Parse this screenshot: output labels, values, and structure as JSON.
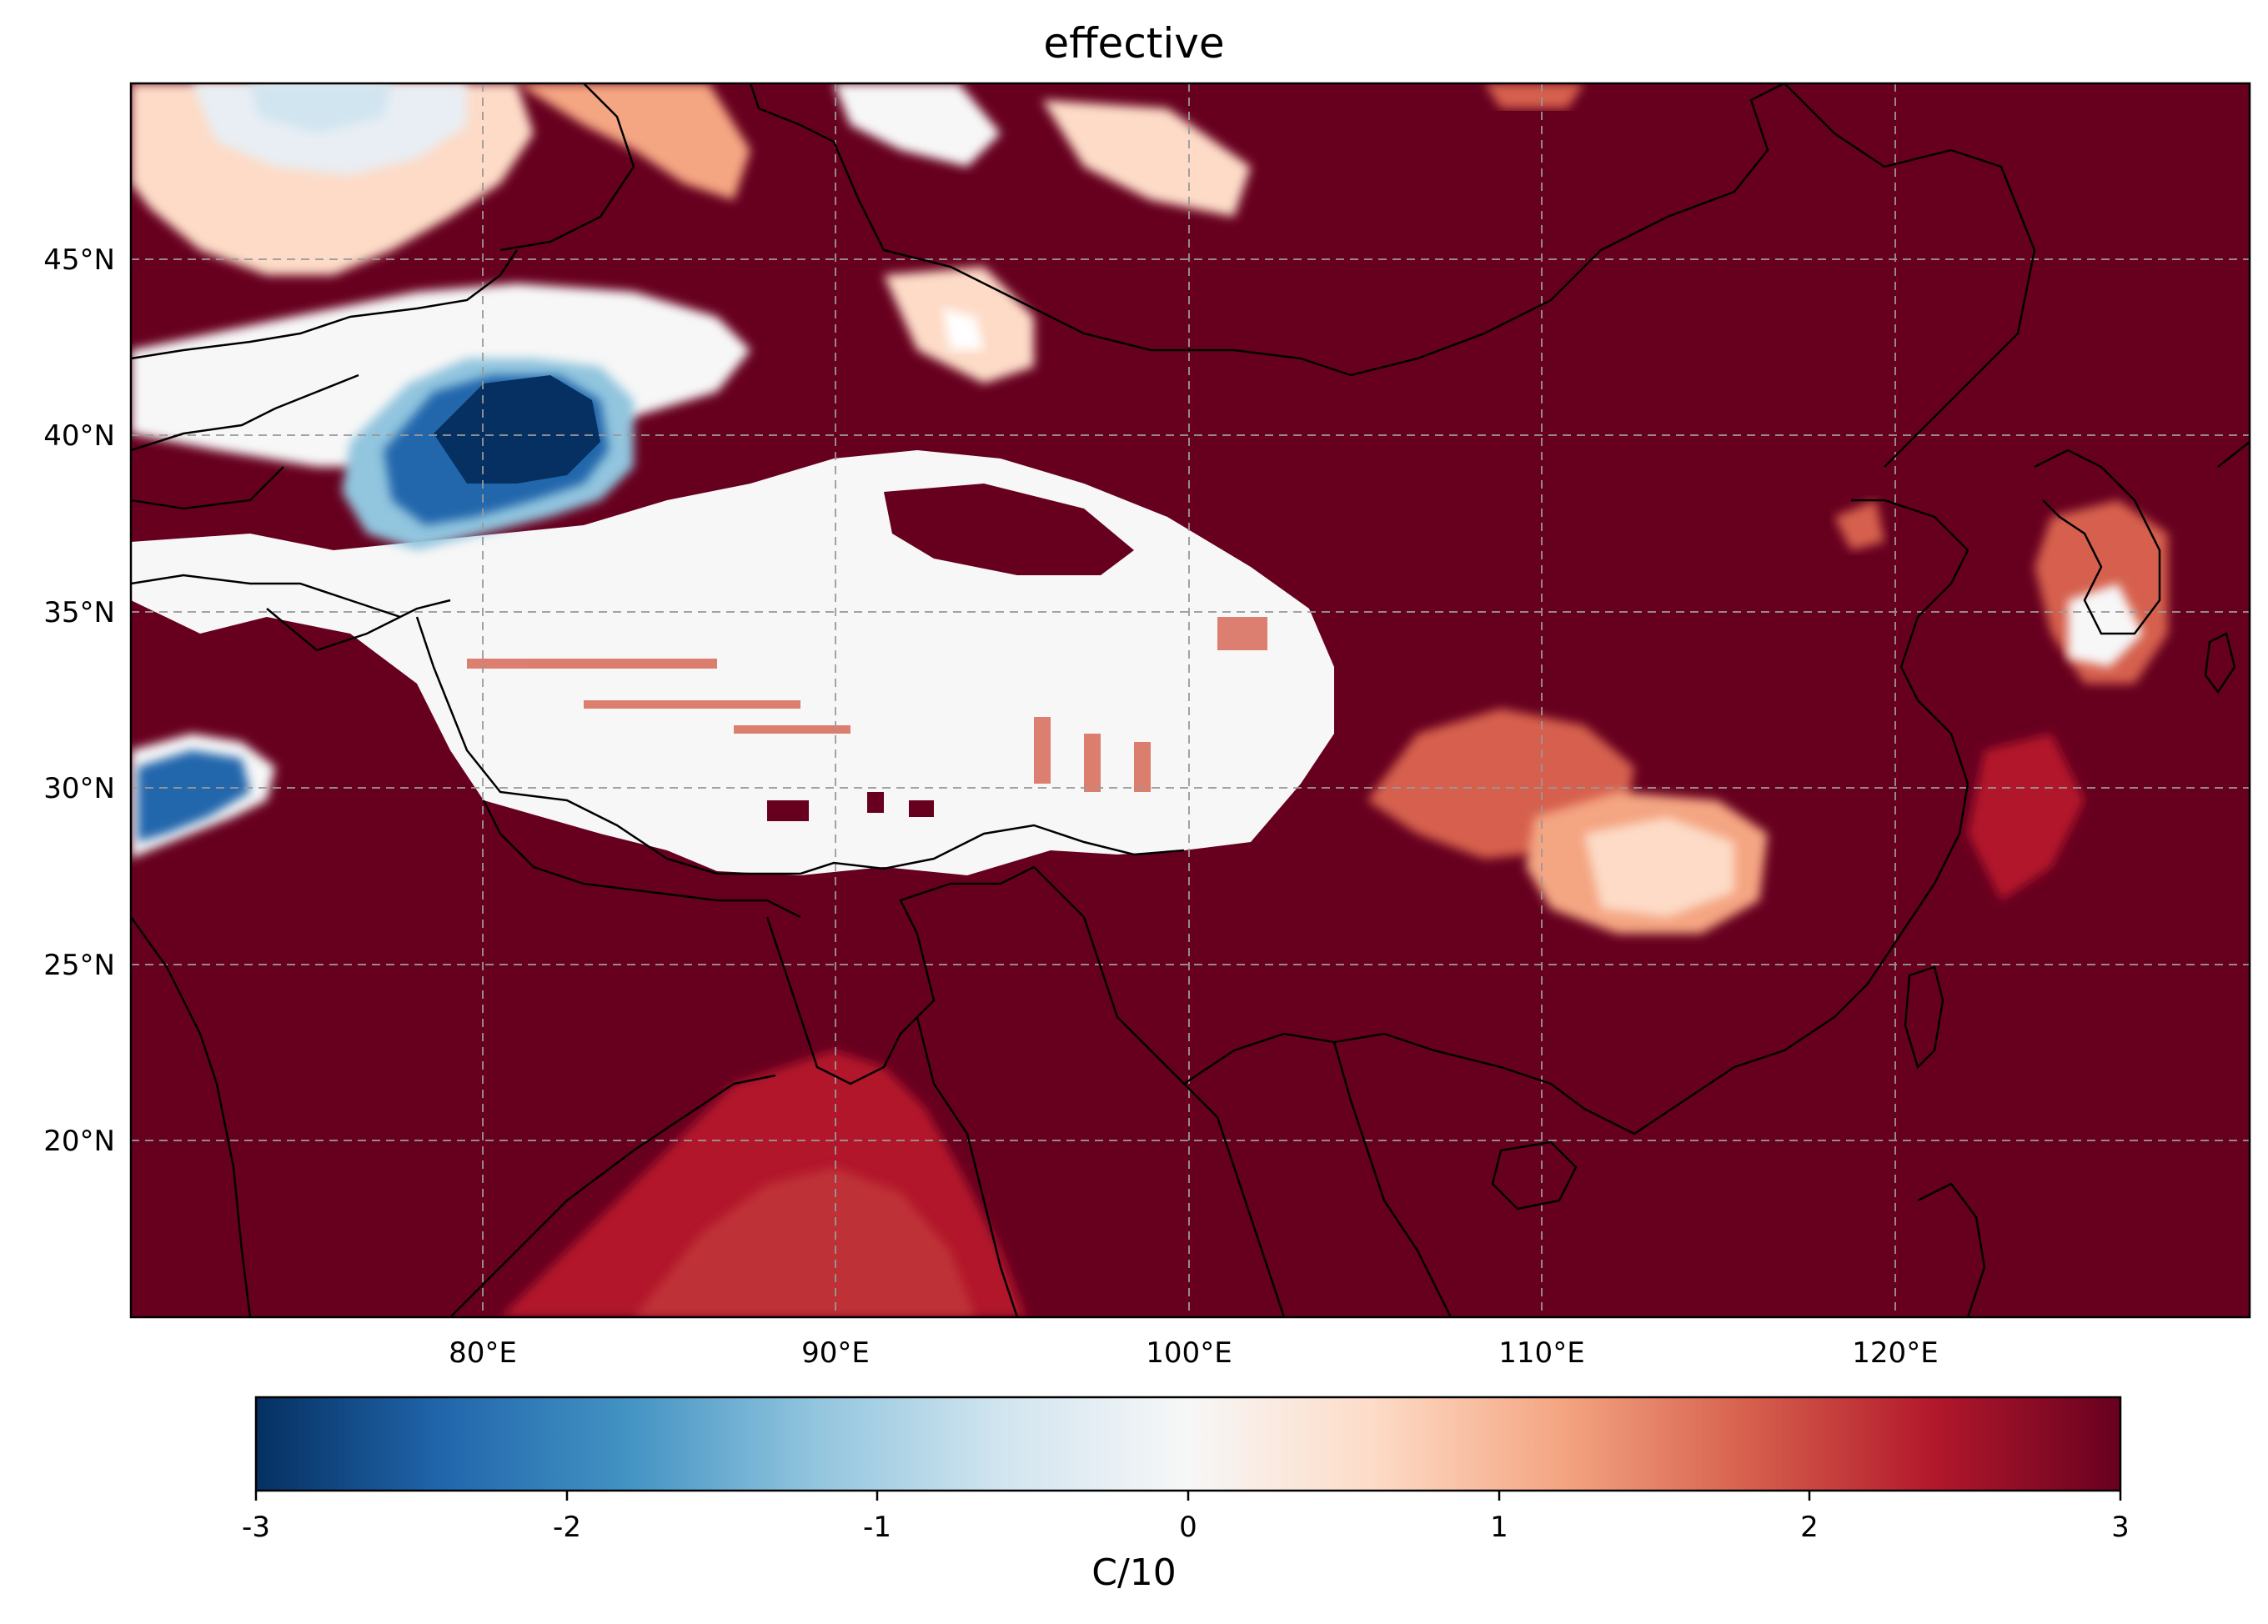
{
  "title": "effective",
  "map": {
    "lon_ticks": [
      {
        "value": 80,
        "label": "80°E"
      },
      {
        "value": 90,
        "label": "90°E"
      },
      {
        "value": 100,
        "label": "100°E"
      },
      {
        "value": 110,
        "label": "110°E"
      },
      {
        "value": 120,
        "label": "120°E"
      }
    ],
    "lat_ticks": [
      {
        "value": 45,
        "label": "45°N"
      },
      {
        "value": 40,
        "label": "40°N"
      },
      {
        "value": 35,
        "label": "35°N"
      },
      {
        "value": 30,
        "label": "30°N"
      },
      {
        "value": 25,
        "label": "25°N"
      },
      {
        "value": 20,
        "label": "20°N"
      }
    ],
    "lon_range": [
      70,
      130
    ],
    "lat_range": [
      15,
      50
    ],
    "gridlines": true,
    "colormap": "RdBu_r",
    "colors": {
      "max": "#67001f",
      "mid": "#f7f7f7",
      "min": "#053061"
    }
  },
  "colorbar": {
    "label": "C/10",
    "ticks": [
      {
        "value": -3,
        "label": "-3"
      },
      {
        "value": -2,
        "label": "-2"
      },
      {
        "value": -1,
        "label": "-1"
      },
      {
        "value": 0,
        "label": "0"
      },
      {
        "value": 1,
        "label": "1"
      },
      {
        "value": 2,
        "label": "2"
      },
      {
        "value": 3,
        "label": "3"
      }
    ],
    "range": [
      -3,
      3
    ]
  }
}
